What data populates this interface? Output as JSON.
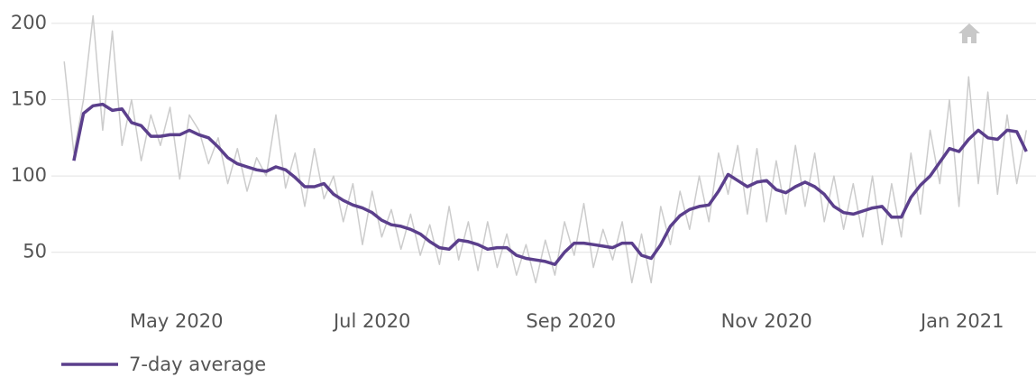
{
  "chart_data": {
    "type": "line",
    "x": [
      86,
      89,
      92,
      95,
      98,
      101,
      104,
      107,
      110,
      113,
      116,
      119,
      122,
      125,
      128,
      131,
      134,
      137,
      140,
      143,
      146,
      149,
      152,
      155,
      158,
      161,
      164,
      167,
      170,
      173,
      176,
      179,
      182,
      185,
      188,
      191,
      194,
      197,
      200,
      203,
      206,
      209,
      212,
      215,
      218,
      221,
      224,
      227,
      230,
      233,
      236,
      239,
      242,
      245,
      248,
      251,
      254,
      257,
      260,
      263,
      266,
      269,
      272,
      275,
      278,
      281,
      284,
      287,
      290,
      293,
      296,
      299,
      302,
      305,
      308,
      311,
      314,
      317,
      320,
      323,
      326,
      329,
      332,
      335,
      338,
      341,
      344,
      347,
      350,
      353,
      356,
      359,
      362,
      365,
      368,
      371,
      374,
      377,
      380,
      383,
      386
    ],
    "series": [
      {
        "color": "#cccccc",
        "values": [
          175,
          115,
          150,
          205,
          130,
          195,
          120,
          150,
          110,
          140,
          120,
          145,
          98,
          140,
          130,
          108,
          125,
          95,
          118,
          90,
          112,
          100,
          140,
          92,
          115,
          80,
          118,
          85,
          100,
          70,
          95,
          55,
          90,
          60,
          78,
          52,
          75,
          48,
          68,
          42,
          80,
          45,
          70,
          38,
          70,
          40,
          62,
          35,
          55,
          30,
          58,
          35,
          70,
          48,
          82,
          40,
          65,
          45,
          70,
          30,
          62,
          30,
          80,
          55,
          90,
          65,
          100,
          70,
          115,
          88,
          120,
          75,
          118,
          70,
          110,
          75,
          120,
          80,
          115,
          70,
          100,
          65,
          95,
          60,
          100,
          55,
          95,
          60,
          115,
          75,
          130,
          95,
          150,
          80,
          165,
          95,
          155,
          88,
          140,
          95,
          130
        ]
      },
      {
        "name": "7-day average",
        "color": "#5b3f8c",
        "values": [
          null,
          110,
          141,
          146,
          147,
          143,
          144,
          135,
          133,
          126,
          126,
          127,
          127,
          130,
          127,
          125,
          119,
          112,
          108,
          106,
          104,
          103,
          106,
          104,
          99,
          93,
          93,
          95,
          88,
          84,
          81,
          79,
          76,
          71,
          68,
          67,
          65,
          62,
          57,
          53,
          52,
          58,
          57,
          55,
          52,
          53,
          53,
          48,
          46,
          45,
          44,
          42,
          50,
          56,
          56,
          55,
          54,
          53,
          56,
          56,
          48,
          46,
          55,
          67,
          74,
          78,
          80,
          81,
          90,
          101,
          97,
          93,
          96,
          97,
          91,
          89,
          93,
          96,
          93,
          88,
          80,
          76,
          75,
          77,
          79,
          80,
          73,
          73,
          86,
          94,
          100,
          109,
          118,
          116,
          124,
          130,
          125,
          124,
          130,
          129,
          116
        ]
      }
    ],
    "xlim": [
      82,
      389
    ],
    "xticks": [
      {
        "value": 121,
        "label": "May 2020"
      },
      {
        "value": 182,
        "label": "Jul 2020"
      },
      {
        "value": 244,
        "label": "Sep 2020"
      },
      {
        "value": 305,
        "label": "Nov 2020"
      },
      {
        "value": 366,
        "label": "Jan 2021"
      }
    ],
    "ylim": [
      25,
      210
    ],
    "yticks": [
      50,
      100,
      150,
      200
    ],
    "grid": true,
    "legend": "bottom-left"
  }
}
